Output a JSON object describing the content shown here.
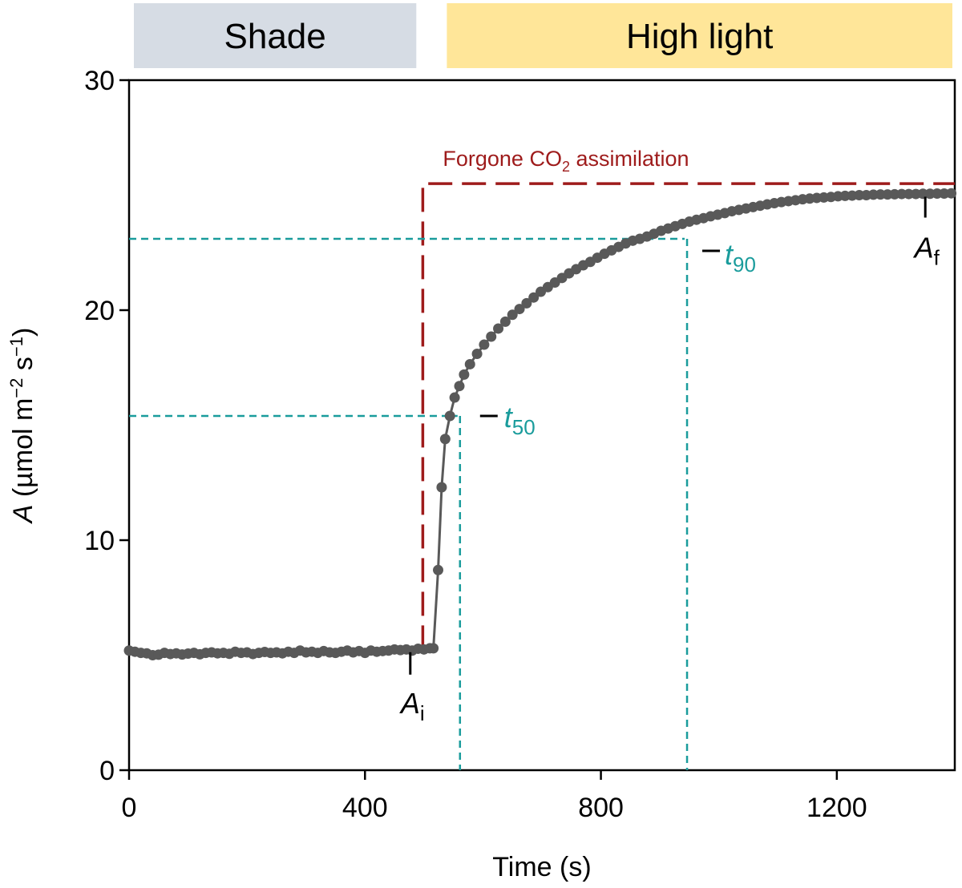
{
  "chart_data": {
    "type": "scatter",
    "xlabel": "Time (s)",
    "ylabel": {
      "italic": "A",
      "rest": " (µmol m",
      "exp1": "−2",
      "mid": " s",
      "exp2": "−1",
      "close": ")"
    },
    "xlim": [
      0,
      1400
    ],
    "ylim": [
      0,
      30
    ],
    "x_ticks": [
      0,
      400,
      800,
      1200
    ],
    "y_ticks": [
      0,
      10,
      20,
      30
    ],
    "grid": false,
    "phases": [
      {
        "label": "Shade",
        "x_start": 0,
        "x_end": 487,
        "color": "#d6dce4"
      },
      {
        "label": "High light",
        "x_start": 498,
        "x_end": 1400,
        "color": "#ffe699"
      }
    ],
    "colors": {
      "series": "#595959",
      "forgone": "#9e1b1b",
      "t_lines": "#1a9c9c",
      "marker": "#000000"
    },
    "light_switch_x": 498,
    "forgone_level": 25.5,
    "forgone_label": {
      "pre": "Forgone CO",
      "sub": "2",
      "post": " assimilation"
    },
    "t50": {
      "label": "t",
      "sub": "50",
      "x": 557,
      "y": 15.4
    },
    "t90": {
      "label": "t",
      "sub": "90",
      "x": 942,
      "y": 23.1
    },
    "Ai": {
      "label": "A",
      "sub": "i",
      "x": 470,
      "y": 5.2
    },
    "Af": {
      "label": "A",
      "sub": "f",
      "x": 1350,
      "y": 25.0
    },
    "series": [
      {
        "x": [
          0,
          10,
          20,
          30,
          40,
          50,
          60,
          70,
          80,
          90,
          100,
          110,
          120,
          130,
          140,
          150,
          160,
          170,
          180,
          190,
          200,
          210,
          220,
          230,
          240,
          250,
          260,
          270,
          280,
          290,
          300,
          310,
          320,
          330,
          340,
          350,
          360,
          370,
          380,
          390,
          400,
          410,
          420,
          430,
          440,
          450,
          460,
          470,
          480,
          490,
          500,
          510,
          516,
          524,
          530,
          536,
          544,
          552,
          560,
          568,
          578,
          590,
          602,
          614,
          626,
          638,
          650,
          662,
          674,
          686,
          698,
          710,
          722,
          734,
          746,
          758,
          770,
          782,
          794,
          806,
          818,
          830,
          842,
          854,
          866,
          878,
          890,
          902,
          914,
          926,
          938,
          950,
          962,
          974,
          986,
          998,
          1010,
          1022,
          1034,
          1046,
          1058,
          1070,
          1082,
          1094,
          1106,
          1118,
          1130,
          1142,
          1154,
          1166,
          1178,
          1190,
          1202,
          1214,
          1226,
          1238,
          1250,
          1262,
          1274,
          1286,
          1298,
          1310,
          1322,
          1334,
          1346,
          1358,
          1370,
          1382,
          1394
        ],
        "y": [
          5.2,
          5.15,
          5.1,
          5.08,
          5.0,
          5.02,
          5.1,
          5.05,
          5.08,
          5.03,
          5.07,
          5.1,
          5.04,
          5.1,
          5.12,
          5.08,
          5.1,
          5.06,
          5.15,
          5.1,
          5.12,
          5.05,
          5.1,
          5.14,
          5.1,
          5.12,
          5.08,
          5.15,
          5.1,
          5.2,
          5.12,
          5.15,
          5.1,
          5.18,
          5.12,
          5.1,
          5.15,
          5.2,
          5.12,
          5.18,
          5.1,
          5.2,
          5.15,
          5.18,
          5.2,
          5.25,
          5.22,
          5.25,
          5.2,
          5.28,
          5.25,
          5.3,
          5.3,
          8.7,
          12.3,
          14.4,
          15.4,
          16.2,
          16.7,
          17.2,
          17.65,
          18.1,
          18.5,
          18.85,
          19.2,
          19.5,
          19.8,
          20.05,
          20.3,
          20.55,
          20.8,
          21.0,
          21.2,
          21.4,
          21.6,
          21.78,
          21.95,
          22.1,
          22.28,
          22.45,
          22.6,
          22.75,
          22.9,
          23.02,
          23.1,
          23.2,
          23.32,
          23.45,
          23.55,
          23.65,
          23.75,
          23.85,
          23.93,
          24.0,
          24.08,
          24.15,
          24.22,
          24.3,
          24.36,
          24.42,
          24.48,
          24.54,
          24.6,
          24.65,
          24.7,
          24.74,
          24.78,
          24.82,
          24.85,
          24.88,
          24.9,
          24.92,
          24.95,
          24.97,
          24.98,
          25.0,
          25.0,
          25.02,
          25.03,
          25.03,
          25.04,
          25.05,
          25.05,
          25.05,
          25.06,
          25.06,
          25.07,
          25.07,
          25.08
        ]
      }
    ]
  }
}
